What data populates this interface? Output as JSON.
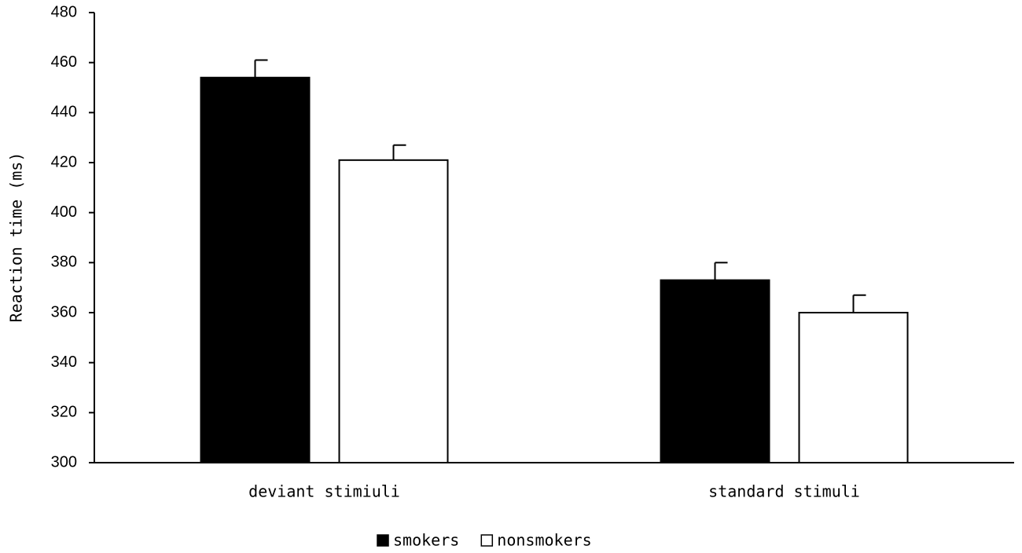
{
  "chart_data": {
    "type": "bar",
    "y_label": "Reaction time (ms)",
    "categories": [
      "deviant  stimiuli",
      "standard stimuli"
    ],
    "series": [
      {
        "name": "smokers",
        "color": "#000000",
        "values": [
          454,
          373
        ],
        "errors": [
          7,
          7
        ]
      },
      {
        "name": "nonsmokers",
        "color": "#ffffff",
        "values": [
          421,
          360
        ],
        "errors": [
          6,
          7
        ]
      }
    ],
    "ylim": [
      300,
      480
    ],
    "yticks": [
      300,
      320,
      340,
      360,
      380,
      400,
      420,
      440,
      460,
      480
    ],
    "legend": "bottom"
  }
}
